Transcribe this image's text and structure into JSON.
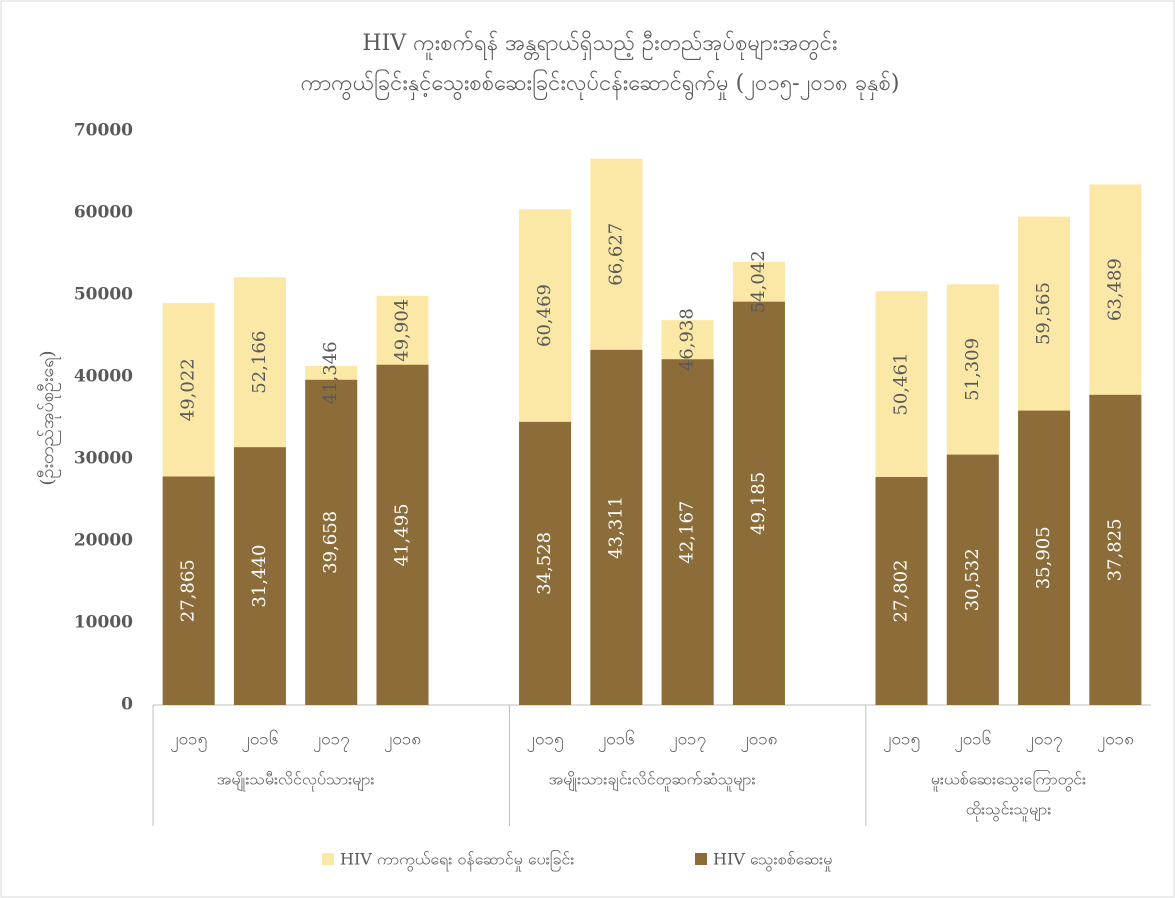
{
  "chart_data": {
    "type": "bar",
    "title": [
      "HIV ကူးစက်ရန် အန္တရာယ်ရှိသည့် ဦးတည်အုပ်စုများအတွင်း",
      "ကာကွယ်ခြင်းနှင့်သွေးစစ်ဆေးခြင်းလုပ်ငန်းဆောင်ရွက်မှု (၂၀၁၅-၂၀၁၈ ခုနှစ်)"
    ],
    "y_label": "(ဦးတည်အုပ်စုဦးရေ)",
    "categories": [
      "၂၀၁၅",
      "၂၀၁၆",
      "၂၀၁၇",
      "၂၀၁၈",
      "၂၀၁၅",
      "၂၀၁၆",
      "၂၀၁၇",
      "၂၀၁၈",
      "၂၀၁၅",
      "၂၀၁၆",
      "၂၀၁၇",
      "၂၀၁၈"
    ],
    "groups": [
      [
        "အမျိုးသမီးလိင်လုပ်သားများ"
      ],
      [
        "အမျိုးသားချင်းလိင်တူဆက်ဆံသူများ"
      ],
      [
        "မူးယစ်ဆေးသွေးကြောတွင်း",
        "ထိုးသွင်းသူများ"
      ]
    ],
    "series": [
      {
        "name": "HIV ကာကွယ်ရေး ဝန်ဆောင်မှု ပေးခြင်း",
        "color": "#fce8a6",
        "label_color": "#595959",
        "values": [
          49022,
          52166,
          41346,
          49904,
          60469,
          66627,
          46938,
          54042,
          50461,
          51309,
          59565,
          63489
        ],
        "value_labels": [
          "49,022",
          "52,166",
          "41,346",
          "49,904",
          "60,469",
          "66,627",
          "46,938",
          "54,042",
          "50,461",
          "51,309",
          "59,565",
          "63,489"
        ]
      },
      {
        "name": "HIV သွေးစစ်ဆေးမှု",
        "color": "#8c6d3a",
        "label_color": "#ffffff",
        "values": [
          27865,
          31440,
          39658,
          41495,
          34528,
          43311,
          42167,
          49185,
          27802,
          30532,
          35905,
          37825
        ],
        "value_labels": [
          "27,865",
          "31,440",
          "39,658",
          "41,495",
          "34,528",
          "43,311",
          "42,167",
          "49,185",
          "27,802",
          "30,532",
          "35,905",
          "37,825"
        ]
      }
    ],
    "ylim": [
      0,
      70000
    ],
    "yticks": [
      0,
      10000,
      20000,
      30000,
      40000,
      50000,
      60000,
      70000
    ],
    "grid": false,
    "legend": "bottom"
  }
}
